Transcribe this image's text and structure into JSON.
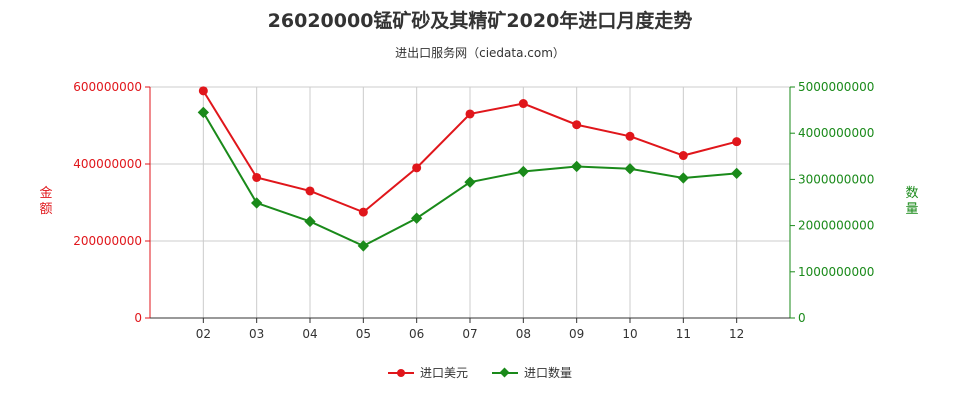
{
  "title": "26020000锰矿砂及其精矿2020年进口月度走势",
  "subtitle": "进出口服务网（ciedata.com）",
  "colors": {
    "usd": "#e0161b",
    "qty": "#1a8a1a",
    "grid": "#cccccc",
    "axis": "#333333"
  },
  "chart_data": {
    "type": "line",
    "categories": [
      "02",
      "03",
      "04",
      "05",
      "06",
      "07",
      "08",
      "09",
      "10",
      "11",
      "12"
    ],
    "y_left": {
      "label": "金额",
      "ticks": [
        "0",
        "200000000",
        "400000000",
        "600000000"
      ],
      "range": [
        0,
        600000000
      ]
    },
    "y_right": {
      "label": "数量",
      "ticks": [
        "0",
        "1000000000",
        "2000000000",
        "3000000000",
        "4000000000",
        "5000000000"
      ],
      "range": [
        0,
        5000000000
      ]
    },
    "series": [
      {
        "name": "进口美元",
        "axis": "left",
        "values": [
          590000000,
          365000000,
          330000000,
          275000000,
          390000000,
          530000000,
          557000000,
          502000000,
          472000000,
          422000000,
          458000000
        ]
      },
      {
        "name": "进口数量",
        "axis": "right",
        "values": [
          4450000000,
          2490000000,
          2090000000,
          1560000000,
          2160000000,
          2940000000,
          3170000000,
          3280000000,
          3230000000,
          3030000000,
          3130000000
        ]
      }
    ],
    "legend_position": "bottom",
    "grid": true
  }
}
